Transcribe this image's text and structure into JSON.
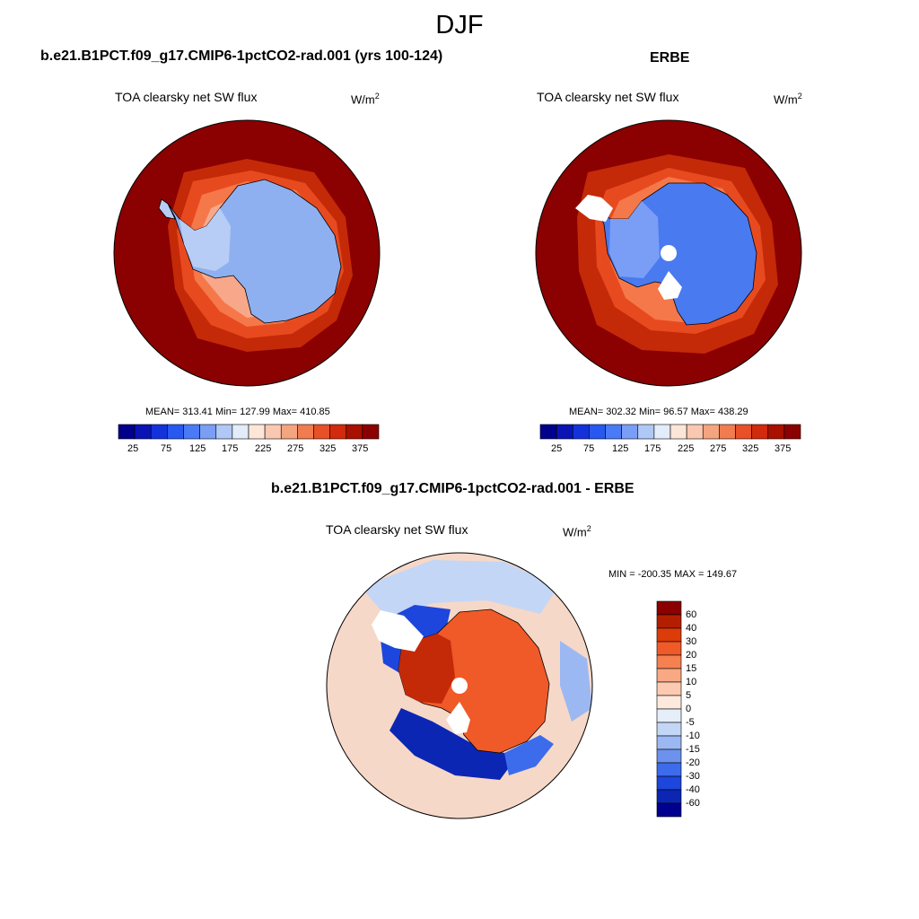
{
  "figure": {
    "season": "DJF",
    "colors": {
      "land_bg": "#8b0000",
      "outline": "#000000",
      "missing": "#ffffff"
    }
  },
  "panels": [
    {
      "case_title": "b.e21.B1PCT.f09_g17.CMIP6-1pctCO2-rad.001 (yrs 100-124)",
      "variable": "TOA clearsky net SW flux",
      "units_base": "W/m",
      "units_exp": "2",
      "stats": "MEAN= 313.41  Min= 127.99  Max= 410.85"
    },
    {
      "case_title": "ERBE",
      "variable": "TOA clearsky net SW flux",
      "units_base": "W/m",
      "units_exp": "2",
      "stats": "MEAN= 302.32  Min=  96.57  Max= 438.29"
    }
  ],
  "diff_panel": {
    "case_title": "b.e21.B1PCT.f09_g17.CMIP6-1pctCO2-rad.001 - ERBE",
    "variable": "TOA clearsky net SW flux",
    "units_base": "W/m",
    "units_exp": "2",
    "minmax": "MIN = -200.35 MAX = 149.67"
  },
  "abs_colorbar": {
    "colors": [
      "#00008b",
      "#0a14b4",
      "#1432dc",
      "#2858f0",
      "#4a7af5",
      "#7a9ef5",
      "#b0c8f5",
      "#e2ecfa",
      "#fde6d8",
      "#fac8b0",
      "#f5a480",
      "#f07c50",
      "#e85028",
      "#d22a0c",
      "#a81000",
      "#8b0000"
    ],
    "tick_labels": [
      "25",
      "75",
      "125",
      "175",
      "225",
      "275",
      "325",
      "375"
    ]
  },
  "diff_colorbar": {
    "colors": [
      "#8b0000",
      "#b41e00",
      "#dc3c0a",
      "#f05a28",
      "#f58050",
      "#f8a883",
      "#fccab0",
      "#feeadc",
      "#e6eefa",
      "#c4d6f5",
      "#9cb8f2",
      "#6c92ee",
      "#3c6cec",
      "#1c46dc",
      "#0c26b4",
      "#000090"
    ],
    "tick_labels": [
      "60",
      "40",
      "30",
      "20",
      "15",
      "10",
      "5",
      "0",
      "-5",
      "-10",
      "-15",
      "-20",
      "-30",
      "-40",
      "-60"
    ]
  }
}
